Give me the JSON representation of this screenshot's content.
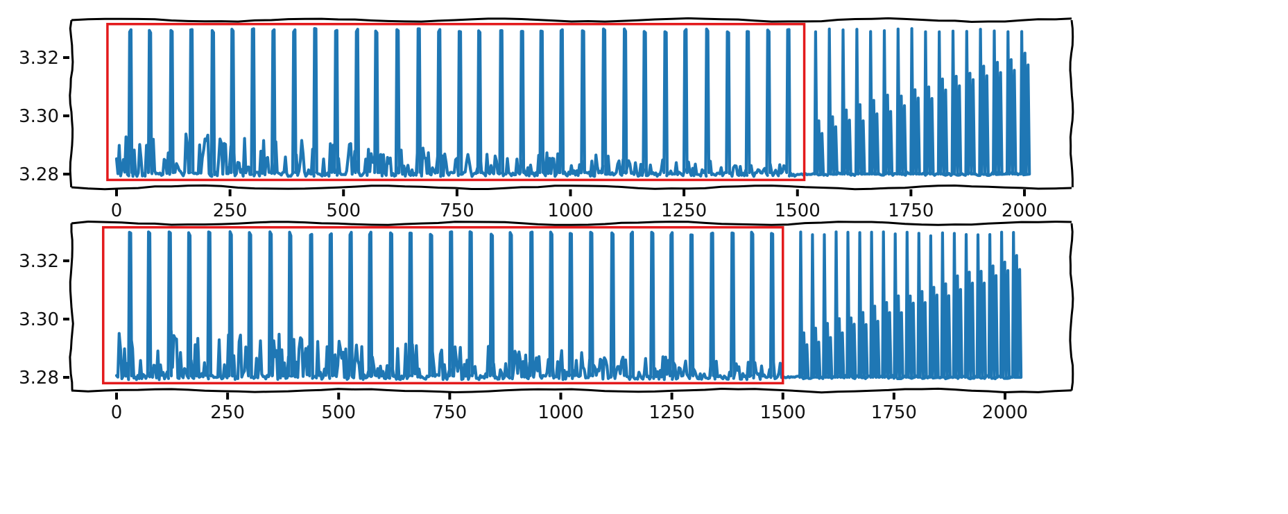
{
  "colors": {
    "line": "#1f77b4",
    "highlight": "#e31a1c",
    "frame": "#000000",
    "background": "#ffffff"
  },
  "chart_data": [
    {
      "type": "line",
      "title": "",
      "xlabel": "",
      "ylabel": "",
      "xlim": [
        -40,
        2040
      ],
      "ylim": [
        3.2775,
        3.3325
      ],
      "x_ticks": [
        0,
        250,
        500,
        750,
        1000,
        1250,
        1500,
        1750,
        2000
      ],
      "y_ticks": [
        3.28,
        3.3,
        3.32
      ],
      "x_tick_labels": [
        "0",
        "250",
        "500",
        "750",
        "1000",
        "1250",
        "1500",
        "1750",
        "2000"
      ],
      "y_tick_labels": [
        "3.28",
        "3.30",
        "3.32"
      ],
      "grid": false,
      "style": "hand-drawn (xkcd)",
      "series": [
        {
          "x_range": [
            0,
            2000
          ],
          "baseline": 3.28,
          "spike_peak": 3.33,
          "spike_count_highlighted_region": 33,
          "noise_band_start": [
            3.279,
            3.295
          ],
          "noise_band_at_1500": [
            3.279,
            3.283
          ],
          "quiet_gap": [
            1500,
            1530
          ],
          "late_spike_count": 16,
          "late_secondary_peak_range": [
            3.298,
            3.322
          ]
        }
      ],
      "highlight_box": {
        "x": [
          -20,
          1515
        ],
        "y": [
          3.278,
          3.3315
        ]
      }
    },
    {
      "type": "line",
      "title": "",
      "xlabel": "",
      "ylabel": "",
      "xlim": [
        -40,
        2065
      ],
      "ylim": [
        3.2775,
        3.3325
      ],
      "x_ticks": [
        0,
        250,
        500,
        750,
        1000,
        1250,
        1500,
        1750,
        2000
      ],
      "y_ticks": [
        3.28,
        3.3,
        3.32
      ],
      "x_tick_labels": [
        "0",
        "250",
        "500",
        "750",
        "1000",
        "1250",
        "1500",
        "1750",
        "2000"
      ],
      "y_tick_labels": [
        "3.28",
        "3.30",
        "3.32"
      ],
      "grid": false,
      "style": "hand-drawn (xkcd)",
      "series": [
        {
          "x_range": [
            0,
            2025
          ],
          "baseline": 3.28,
          "spike_peak": 3.33,
          "spike_count_highlighted_region": 33,
          "noise_band_start": [
            3.279,
            3.298
          ],
          "noise_band_at_1500": [
            3.279,
            3.285
          ],
          "quiet_gap": [
            1495,
            1530
          ],
          "late_spike_count": 19,
          "late_secondary_peak_range": [
            3.295,
            3.322
          ]
        }
      ],
      "highlight_box": {
        "x": [
          -30,
          1500
        ],
        "y": [
          3.278,
          3.3315
        ]
      }
    }
  ]
}
